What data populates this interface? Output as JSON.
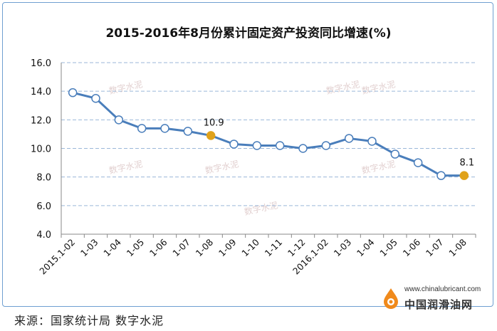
{
  "chart_data": {
    "type": "line",
    "title": "2015-2016年8月份累计固定资产投资同比增速(%)",
    "categories": [
      "2015.1-02",
      "1-03",
      "1-04",
      "1-05",
      "1-06",
      "1-07",
      "1-08",
      "1-09",
      "1-10",
      "1-11",
      "1-12",
      "2016.1-02",
      "1-03",
      "1-04",
      "1-05",
      "1-06",
      "1-07",
      "1-08"
    ],
    "series": [
      {
        "values": [
          13.9,
          13.5,
          12.0,
          11.4,
          11.4,
          11.2,
          10.9,
          10.3,
          10.2,
          10.2,
          10.0,
          10.2,
          10.7,
          10.5,
          9.6,
          9.0,
          8.1,
          8.1
        ]
      }
    ],
    "highlighted": [
      {
        "index": 6,
        "label": "10.9"
      },
      {
        "index": 17,
        "label": "8.1"
      }
    ],
    "ylim": [
      4.0,
      16.0
    ],
    "yticks": [
      "4.0",
      "6.0",
      "8.0",
      "10.0",
      "12.0",
      "14.0",
      "16.0"
    ],
    "grid": true,
    "colors": {
      "line": "#4a7ebb",
      "highlight": "#e0a21a",
      "grid": "#9bb7d9"
    },
    "watermark": "数字水泥"
  },
  "footer": {
    "source": "来源：国家统计局 数字水泥",
    "brand_url": "www.chinalubricant.com",
    "brand_name": "中国润滑油网"
  }
}
